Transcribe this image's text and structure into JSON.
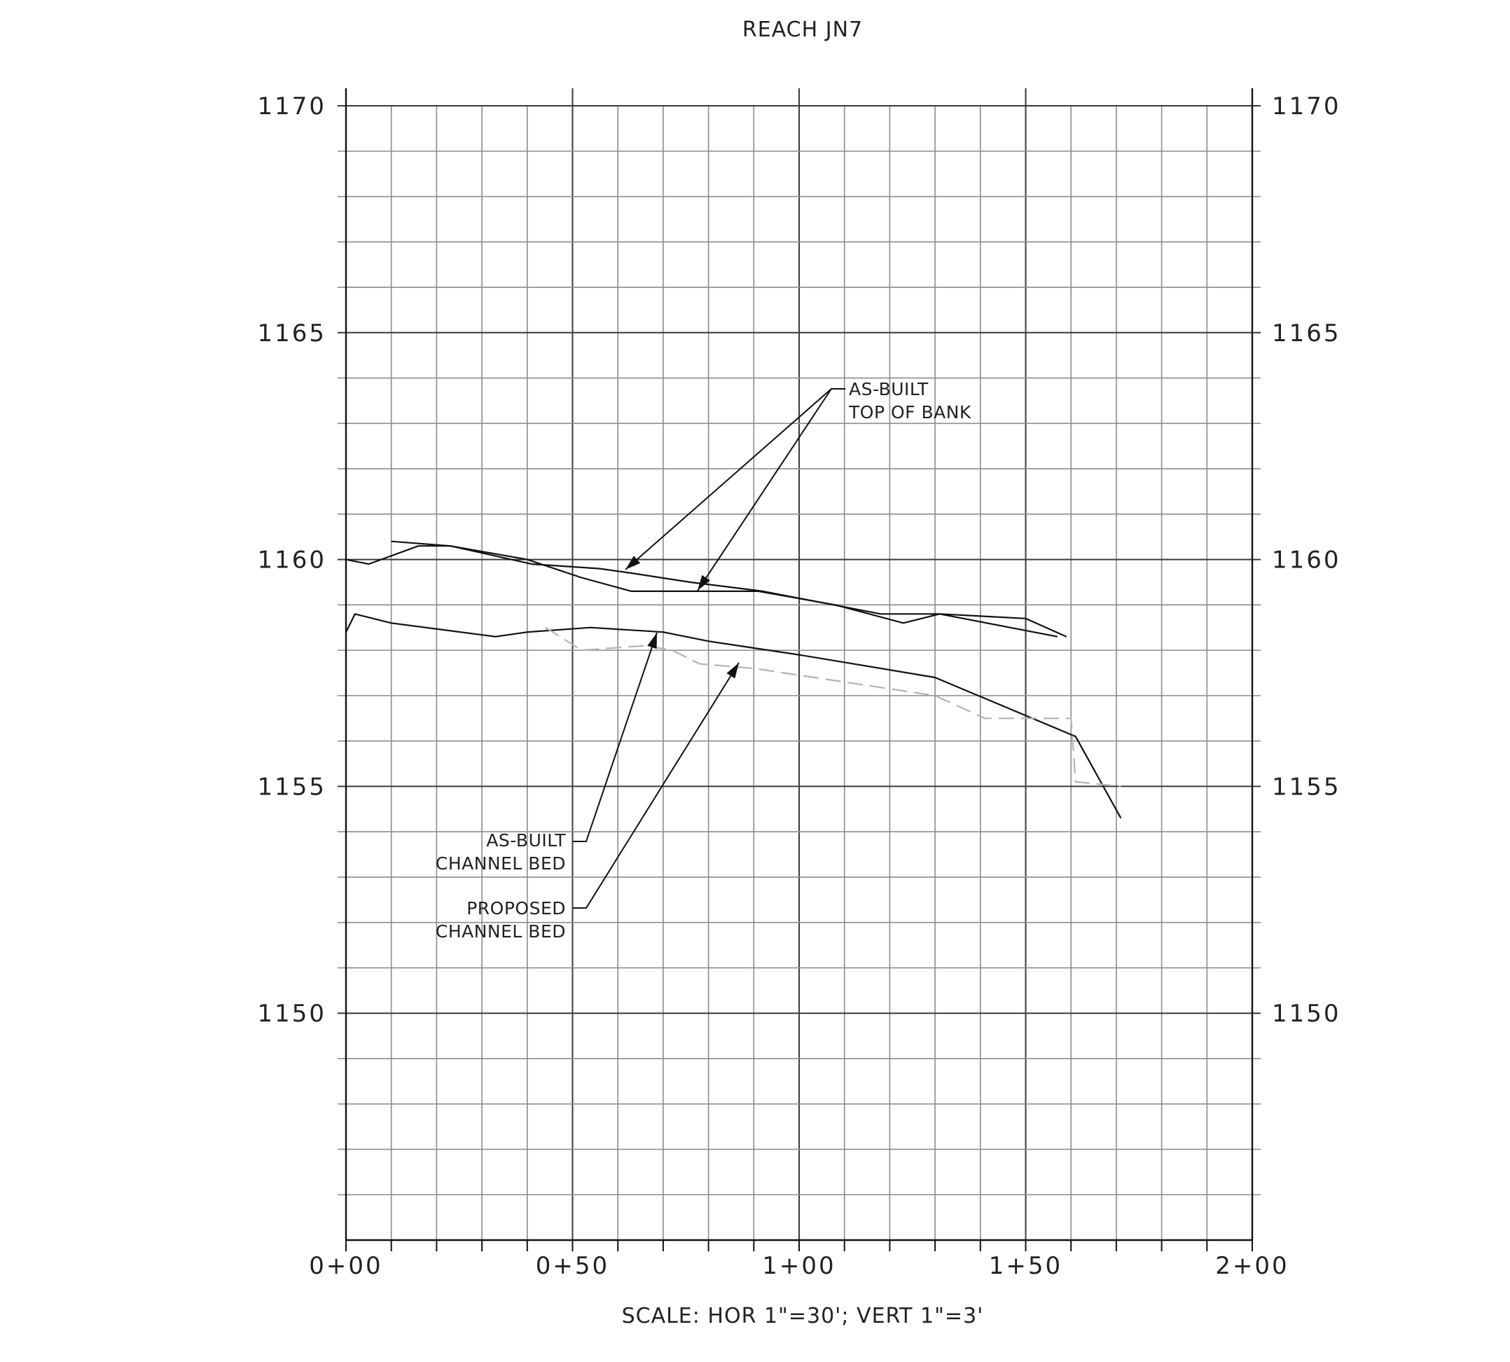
{
  "chart_data": {
    "type": "line",
    "title": "REACH JN7",
    "xlabel": "SCALE: HOR 1\"=30'; VERT 1\"=3'",
    "ylabel": "",
    "xlim": [
      0,
      200
    ],
    "ylim": [
      1145,
      1170
    ],
    "x_ticks": [
      {
        "value": 0,
        "label": "0+00"
      },
      {
        "value": 50,
        "label": "0+50"
      },
      {
        "value": 100,
        "label": "1+00"
      },
      {
        "value": 150,
        "label": "1+50"
      },
      {
        "value": 200,
        "label": "2+00"
      }
    ],
    "y_ticks": [
      {
        "value": 1150,
        "label": "1150"
      },
      {
        "value": 1155,
        "label": "1155"
      },
      {
        "value": 1160,
        "label": "1160"
      },
      {
        "value": 1165,
        "label": "1165"
      },
      {
        "value": 1170,
        "label": "1170"
      }
    ],
    "grid": true,
    "series": [
      {
        "name": "AS-BUILT TOP OF BANK",
        "color": "#111111",
        "style": "solid",
        "points": [
          [
            0,
            1160.0
          ],
          [
            5,
            1159.9
          ],
          [
            16,
            1160.3
          ],
          [
            23,
            1160.3
          ],
          [
            32,
            1160.1
          ],
          [
            41,
            1159.9
          ],
          [
            56,
            1159.8
          ],
          [
            63,
            1159.7
          ],
          [
            76,
            1159.5
          ],
          [
            92,
            1159.3
          ],
          [
            118,
            1158.8
          ],
          [
            127,
            1158.8
          ],
          [
            131,
            1158.8
          ],
          [
            150,
            1158.7
          ],
          [
            159,
            1158.3
          ]
        ]
      },
      {
        "name": "AS-BUILT TOP OF BANK",
        "color": "#111111",
        "style": "solid",
        "points": [
          [
            10,
            1160.4
          ],
          [
            23,
            1160.3
          ],
          [
            40,
            1160.0
          ],
          [
            52,
            1159.6
          ],
          [
            63,
            1159.3
          ],
          [
            77,
            1159.3
          ],
          [
            91,
            1159.3
          ],
          [
            108,
            1159.0
          ],
          [
            123,
            1158.6
          ],
          [
            131,
            1158.8
          ],
          [
            157,
            1158.3
          ]
        ]
      },
      {
        "name": "AS-BUILT CHANNEL BED",
        "color": "#111111",
        "style": "solid",
        "points": [
          [
            0,
            1158.4
          ],
          [
            2,
            1158.8
          ],
          [
            10,
            1158.6
          ],
          [
            33,
            1158.3
          ],
          [
            40,
            1158.4
          ],
          [
            54,
            1158.5
          ],
          [
            70,
            1158.4
          ],
          [
            80,
            1158.2
          ],
          [
            100,
            1157.9
          ],
          [
            130,
            1157.4
          ],
          [
            161,
            1156.1
          ],
          [
            171,
            1154.3
          ]
        ]
      },
      {
        "name": "PROPOSED CHANNEL BED",
        "color": "#b4b4b4",
        "style": "dashed",
        "points": [
          [
            44,
            1158.5
          ],
          [
            52,
            1158.0
          ],
          [
            66,
            1158.1
          ],
          [
            72,
            1158.0
          ],
          [
            78,
            1157.7
          ],
          [
            90,
            1157.6
          ],
          [
            130,
            1157.0
          ],
          [
            141,
            1156.5
          ],
          [
            160,
            1156.5
          ],
          [
            161,
            1155.1
          ],
          [
            171,
            1155.0
          ]
        ]
      }
    ],
    "annotations": [
      {
        "lines": [
          "AS-BUILT",
          "TOP OF BANK"
        ],
        "position": "upper-right of center"
      },
      {
        "lines": [
          "AS-BUILT",
          "CHANNEL BED"
        ],
        "position": "lower-left"
      },
      {
        "lines": [
          "PROPOSED",
          "CHANNEL BED"
        ],
        "position": "lower-left"
      }
    ],
    "legend": "none"
  }
}
